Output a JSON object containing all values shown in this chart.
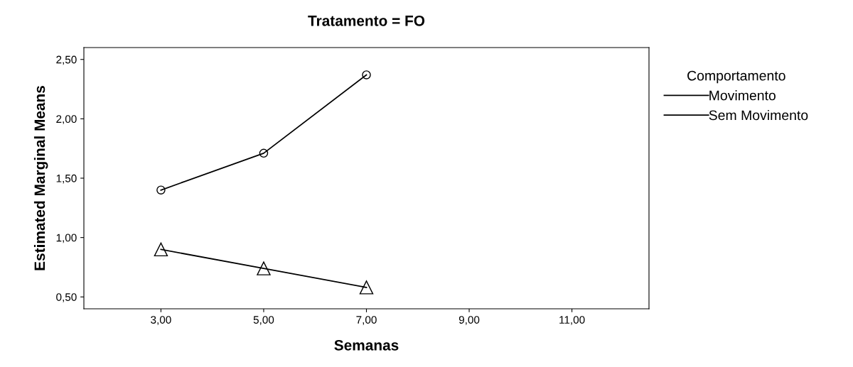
{
  "chart_data": {
    "type": "line",
    "title": "Tratamento = FO",
    "xlabel": "Semanas",
    "ylabel": "Estimated Marginal Means",
    "legend_title": "Comportamento",
    "x": [
      3,
      5,
      7
    ],
    "series": [
      {
        "name": "Movimento",
        "color": "#000000",
        "values": [
          1.4,
          1.71,
          2.37
        ],
        "marker": "circle"
      },
      {
        "name": "Sem Movimento",
        "color": "#000000",
        "values": [
          0.9,
          0.74,
          0.58
        ],
        "marker": "triangle"
      }
    ],
    "xlim": [
      1.5,
      12.5
    ],
    "xticks": [
      {
        "value": 3,
        "label": "3,00"
      },
      {
        "value": 5,
        "label": "5,00"
      },
      {
        "value": 7,
        "label": "7,00"
      },
      {
        "value": 9,
        "label": "9,00"
      },
      {
        "value": 11,
        "label": "11,00"
      }
    ],
    "ylim": [
      0.4,
      2.6
    ],
    "yticks": [
      {
        "value": 0.5,
        "label": "0,50"
      },
      {
        "value": 1.0,
        "label": "1,00"
      },
      {
        "value": 1.5,
        "label": "1,50"
      },
      {
        "value": 2.0,
        "label": "2,00"
      },
      {
        "value": 2.5,
        "label": "2,50"
      }
    ],
    "grid": false,
    "legend": "right",
    "line_style": "solid"
  }
}
